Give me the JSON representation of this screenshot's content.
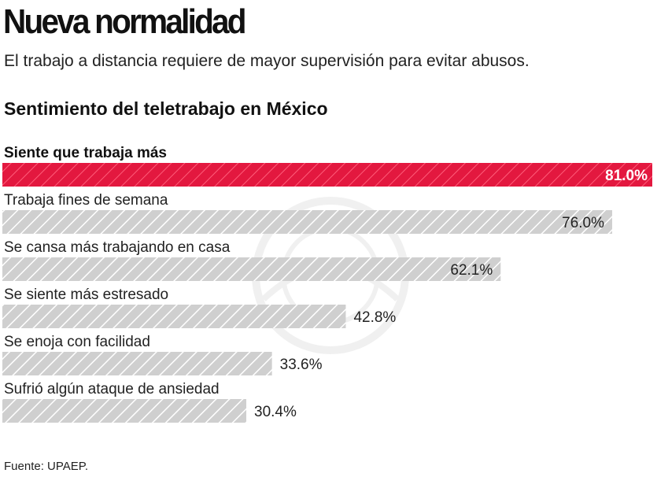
{
  "header": {
    "title": "Nueva normalidad",
    "subtitle": "El trabajo a distancia requiere de mayor supervisión para evitar abusos."
  },
  "colors": {
    "highlight": "#e3183f",
    "bar": "#cfcfcf",
    "hatch": "#ffffff"
  },
  "chart_data": {
    "type": "bar",
    "orientation": "horizontal",
    "title": "Sentimiento del teletrabajo en México",
    "categories": [
      "Siente que trabaja más",
      "Trabaja fines de semana",
      "Se cansa más trabajando en casa",
      "Se siente más estresado",
      "Se enoja con facilidad",
      "Sufrió algún ataque de ansiedad"
    ],
    "values": [
      81.0,
      76.0,
      62.1,
      42.8,
      33.6,
      30.4
    ],
    "value_labels": [
      "81.0%",
      "76.0%",
      "62.1%",
      "42.8%",
      "33.6%",
      "30.4%"
    ],
    "highlight_index": 0,
    "unit": "%",
    "xlim": [
      0,
      81.0
    ],
    "grid": false,
    "legend": "none"
  },
  "footer": {
    "source": "Fuente: UPAEP."
  }
}
